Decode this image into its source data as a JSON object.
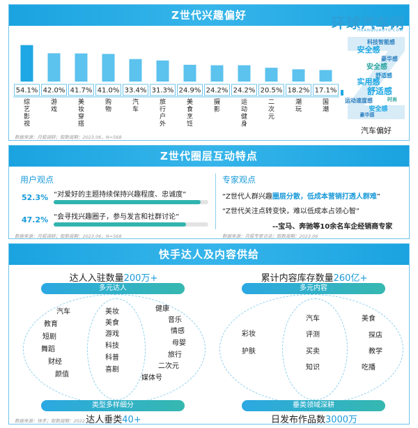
{
  "section1": {
    "title": "Z世代兴趣偏好",
    "source": "数据来源：月狐调研；取数周期：2023.06，N=568",
    "side_label": "汽车偏好",
    "watermark": "环球汽车网",
    "watermark_sub": "HUANQIUAUTO.COM",
    "cloud_words": [
      "科技智能感",
      "安全感",
      "豪华感",
      "安全感",
      "舒适感",
      "实用感",
      "舒适感",
      "运动速度感",
      "时尚",
      "安全感",
      "豪华感"
    ],
    "colors": {
      "bar": "#1ea7e4",
      "bar_light": "#5cc2ee"
    }
  },
  "chart_data": {
    "type": "bar",
    "categories": [
      "综艺影视",
      "游戏",
      "美妆穿搭",
      "购物",
      "汽车",
      "旅行户外",
      "美食烹饪",
      "摄影",
      "运动健身",
      "二次元",
      "潮玩",
      "国潮"
    ],
    "values": [
      54.1,
      42.0,
      41.7,
      41.0,
      33.4,
      31.3,
      24.9,
      24.2,
      24.2,
      20.5,
      18.2,
      17.1
    ],
    "value_labels": [
      "54.1%",
      "42.0%",
      "41.7%",
      "41.0%",
      "33.4%",
      "31.3%",
      "24.9%",
      "24.2%",
      "24.2%",
      "20.5%",
      "18.2%",
      "17.1%"
    ],
    "title": "Z世代兴趣偏好",
    "ylim": [
      0,
      60
    ]
  },
  "section2": {
    "title": "Z世代圈层互动特点",
    "user_title": "用户观点",
    "expert_title": "专家观点",
    "user_items": [
      {
        "pct": "52.3%",
        "value": 0.523,
        "quote": "“对爱好的主题持续保持兴趣程度、忠诚度”"
      },
      {
        "pct": "47.2%",
        "value": 0.472,
        "quote": "“会寻找兴趣圈子，参与发言和社群讨论”"
      }
    ],
    "expert_q1_pre": "“Z世代人群兴趣",
    "expert_q1_hl": "圈层分散，低成本营销打透人群难",
    "expert_q1_post": "”",
    "expert_q2": "“Z世代关注点转变快，难以低成本占领心智”",
    "expert_sig": "--宝马、奔驰等10余名车企经销商专家",
    "source_left": "数据来源：月狐调研；取数周期：2023.06，N=568",
    "source_right": "数据来源：月狐专家访谈；取数周期：2023.06"
  },
  "section3": {
    "title": "快手达人及内容供给",
    "left_stat_pre": "达人入驻数量",
    "left_stat_num": "200万+",
    "right_stat_pre": "累计内容库存数量",
    "right_stat_num": "260亿+",
    "left_pill_top": "多元达人",
    "right_pill_top": "多元内容",
    "left_pill_bottom": "类型多样细分",
    "right_pill_bottom": "垂类领域深耕",
    "left_bottom_pre": "达人垂类",
    "left_bottom_num": "40+",
    "right_bottom_pre": "日发布作品数",
    "right_bottom_num": "3000万",
    "left_tags": [
      "汽车",
      "教育",
      "短剧",
      "舞蹈",
      "财经",
      "颜值",
      "美妆",
      "美食",
      "游戏",
      "科技",
      "科普",
      "喜剧",
      "健康",
      "音乐",
      "情感",
      "母婴",
      "旅行",
      "二次元",
      "媒体号"
    ],
    "right_tags": [
      "彩妆",
      "护肤",
      "汽车",
      "评测",
      "买卖",
      "知识",
      "美食",
      "探店",
      "教学",
      "吃播"
    ],
    "source": "数据来源：快手；取数周期：2022.12"
  }
}
